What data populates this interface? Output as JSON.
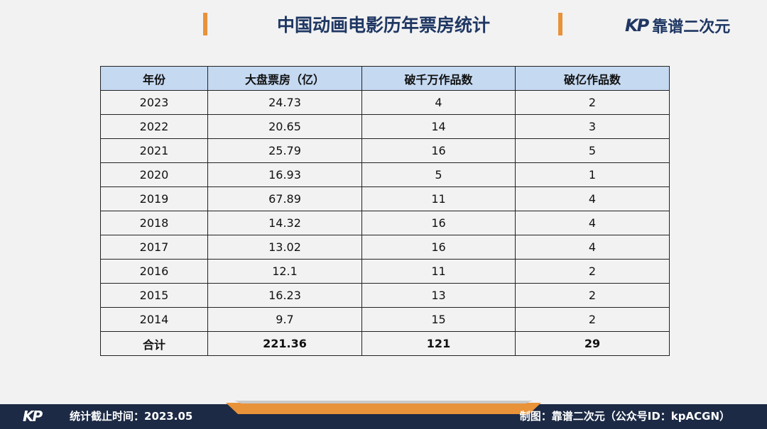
{
  "header": {
    "title": "中国动画电影历年票房统计",
    "logo": {
      "mark": "KP",
      "name": "靠谱二次元"
    }
  },
  "table": {
    "columns": [
      "年份",
      "大盘票房（亿）",
      "破千万作品数",
      "破亿作品数"
    ],
    "rows": [
      [
        2023,
        24.73,
        4,
        2
      ],
      [
        2022,
        20.65,
        14,
        3
      ],
      [
        2021,
        25.79,
        16,
        5
      ],
      [
        2020,
        16.93,
        5,
        1
      ],
      [
        2019,
        67.89,
        11,
        4
      ],
      [
        2018,
        14.32,
        16,
        4
      ],
      [
        2017,
        13.02,
        16,
        4
      ],
      [
        2016,
        12.1,
        11,
        2
      ],
      [
        2015,
        16.23,
        13,
        2
      ],
      [
        2014,
        9.7,
        15,
        2
      ]
    ],
    "total": [
      "合计",
      221.36,
      121,
      29
    ]
  },
  "footer": {
    "logo": "KP",
    "left": "统计截止时间：2023.05",
    "right": "制图：靠谱二次元（公众号ID：kpACGN）"
  }
}
